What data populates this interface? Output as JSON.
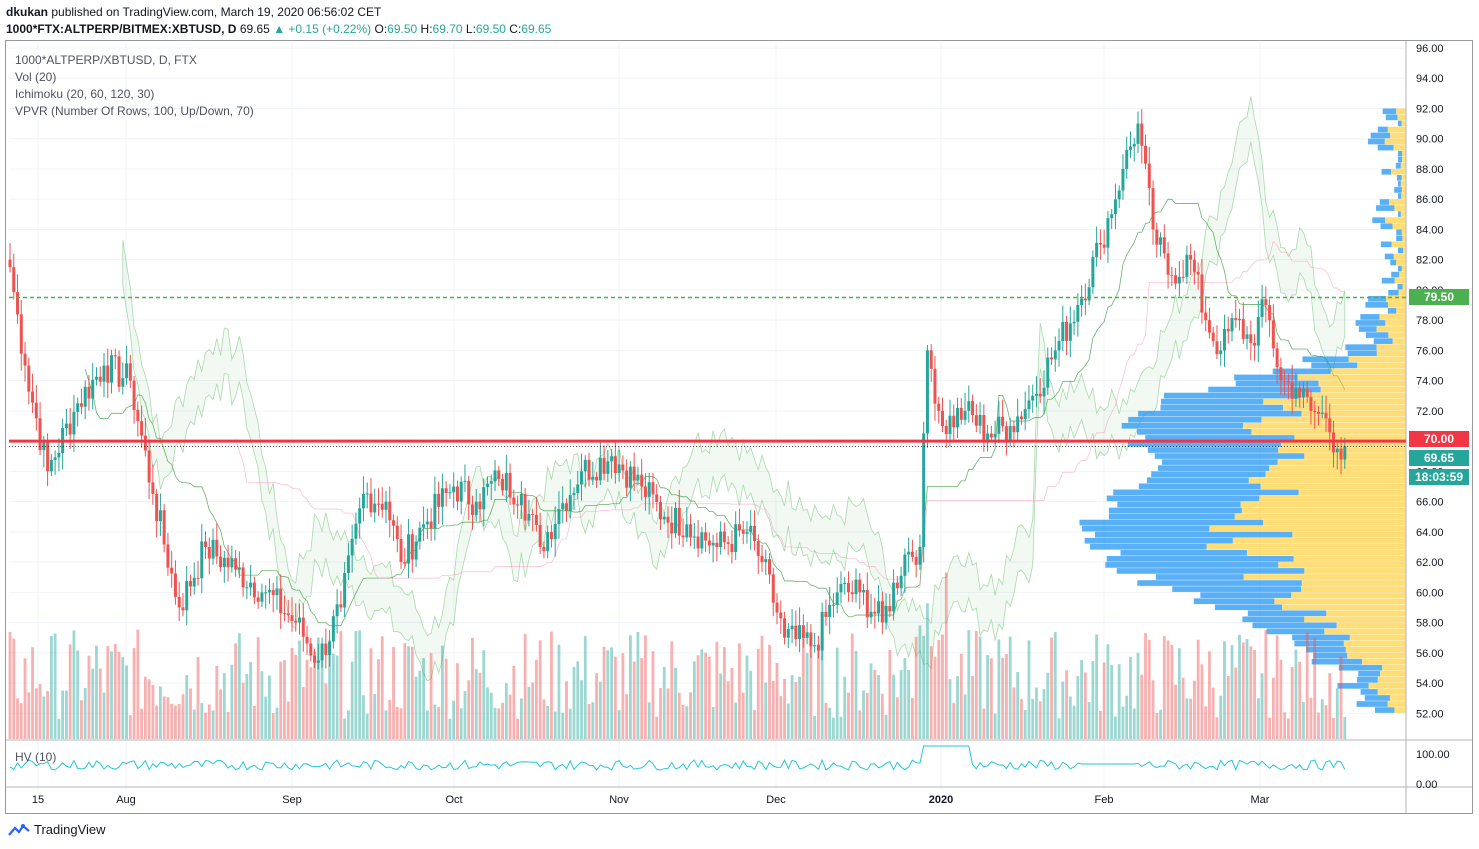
{
  "header": {
    "publisher": "dkukan",
    "published_text": "published on TradingView.com, March 19, 2020 06:56:02 CET",
    "symbol": "1000*FTX:ALTPERP/BITMEX:XBTUSD, D",
    "last": "69.65",
    "change": "▲ +0.15 (+0.22%)",
    "o_label": "O:",
    "o_value": "69.50",
    "h_label": "H:",
    "h_value": "69.70",
    "l_label": "L:",
    "l_value": "69.50",
    "c_label": "C:",
    "c_value": "69.65"
  },
  "indicators": {
    "title": "1000*ALTPERP/XBTUSD, D, FTX",
    "vol": "Vol (20)",
    "ichimoku": "Ichimoku (20, 60, 120, 30)",
    "vpvr": "VPVR (Number Of Rows, 100, Up/Down, 70)",
    "hv": "HV (10)"
  },
  "price_labels": {
    "resistance": "79.50",
    "support": "70.00",
    "last": "69.65",
    "countdown": "18:03:59"
  },
  "footer": {
    "brand": "TradingView"
  },
  "colors": {
    "up": "#26a69a",
    "down": "#ef5350",
    "support_line": "#f23645",
    "resistance_line": "#4caf50",
    "vp_up": "#2196f3",
    "vp_down": "#ffc107",
    "hv_line": "#26c6da"
  },
  "chart_data": {
    "type": "candlestick",
    "x_tick_labels": [
      "15",
      "Aug",
      "Sep",
      "Oct",
      "Nov",
      "Dec",
      "2020",
      "Feb",
      "Mar"
    ],
    "y_tick_labels": [
      "96.00",
      "94.00",
      "92.00",
      "90.00",
      "88.00",
      "86.00",
      "84.00",
      "82.00",
      "80.00",
      "78.00",
      "76.00",
      "74.00",
      "72.00",
      "70.00",
      "68.00",
      "66.00",
      "64.00",
      "62.00",
      "60.00",
      "58.00",
      "56.00",
      "54.00",
      "52.00"
    ],
    "ylim": [
      51,
      97
    ],
    "hv_tick_labels": [
      "100.00",
      "0.00"
    ],
    "hlines": [
      {
        "value": 79.5,
        "style": "dashed",
        "color": "#4caf50"
      },
      {
        "value": 70.0,
        "style": "solid",
        "color": "#f23645"
      }
    ],
    "anchors": [
      {
        "idx": 0,
        "price": 81.5
      },
      {
        "idx": 4,
        "price": 75
      },
      {
        "idx": 10,
        "price": 68
      },
      {
        "idx": 18,
        "price": 72.5
      },
      {
        "idx": 25,
        "price": 75
      },
      {
        "idx": 32,
        "price": 74
      },
      {
        "idx": 38,
        "price": 66.5
      },
      {
        "idx": 45,
        "price": 59
      },
      {
        "idx": 52,
        "price": 63
      },
      {
        "idx": 60,
        "price": 61.5
      },
      {
        "idx": 68,
        "price": 60
      },
      {
        "idx": 76,
        "price": 58
      },
      {
        "idx": 82,
        "price": 55.5
      },
      {
        "idx": 88,
        "price": 59
      },
      {
        "idx": 94,
        "price": 66.5
      },
      {
        "idx": 100,
        "price": 66
      },
      {
        "idx": 104,
        "price": 62
      },
      {
        "idx": 110,
        "price": 64.5
      },
      {
        "idx": 118,
        "price": 67
      },
      {
        "idx": 124,
        "price": 66
      },
      {
        "idx": 130,
        "price": 67.5
      },
      {
        "idx": 136,
        "price": 66.5
      },
      {
        "idx": 141,
        "price": 63
      },
      {
        "idx": 146,
        "price": 65.5
      },
      {
        "idx": 152,
        "price": 68
      },
      {
        "idx": 160,
        "price": 69
      },
      {
        "idx": 168,
        "price": 67
      },
      {
        "idx": 174,
        "price": 65
      },
      {
        "idx": 180,
        "price": 64.5
      },
      {
        "idx": 188,
        "price": 63
      },
      {
        "idx": 196,
        "price": 64
      },
      {
        "idx": 200,
        "price": 62
      },
      {
        "idx": 206,
        "price": 57
      },
      {
        "idx": 214,
        "price": 56.5
      },
      {
        "idx": 220,
        "price": 60
      },
      {
        "idx": 226,
        "price": 60
      },
      {
        "idx": 232,
        "price": 58
      },
      {
        "idx": 238,
        "price": 62.5
      },
      {
        "idx": 242,
        "price": 63
      },
      {
        "idx": 244,
        "price": 76
      },
      {
        "idx": 248,
        "price": 71
      },
      {
        "idx": 254,
        "price": 72
      },
      {
        "idx": 260,
        "price": 70.5
      },
      {
        "idx": 266,
        "price": 71
      },
      {
        "idx": 272,
        "price": 73
      },
      {
        "idx": 278,
        "price": 76
      },
      {
        "idx": 284,
        "price": 79
      },
      {
        "idx": 290,
        "price": 83
      },
      {
        "idx": 296,
        "price": 88
      },
      {
        "idx": 300,
        "price": 91
      },
      {
        "idx": 304,
        "price": 84
      },
      {
        "idx": 308,
        "price": 81
      },
      {
        "idx": 314,
        "price": 82
      },
      {
        "idx": 318,
        "price": 78
      },
      {
        "idx": 322,
        "price": 76
      },
      {
        "idx": 326,
        "price": 78
      },
      {
        "idx": 330,
        "price": 76.5
      },
      {
        "idx": 334,
        "price": 79
      },
      {
        "idx": 338,
        "price": 74
      },
      {
        "idx": 342,
        "price": 73.5
      },
      {
        "idx": 346,
        "price": 72
      },
      {
        "idx": 350,
        "price": 71.5
      },
      {
        "idx": 353,
        "price": 69.5
      },
      {
        "idx": 355,
        "price": 69.65
      }
    ],
    "last_close": 69.65
  }
}
